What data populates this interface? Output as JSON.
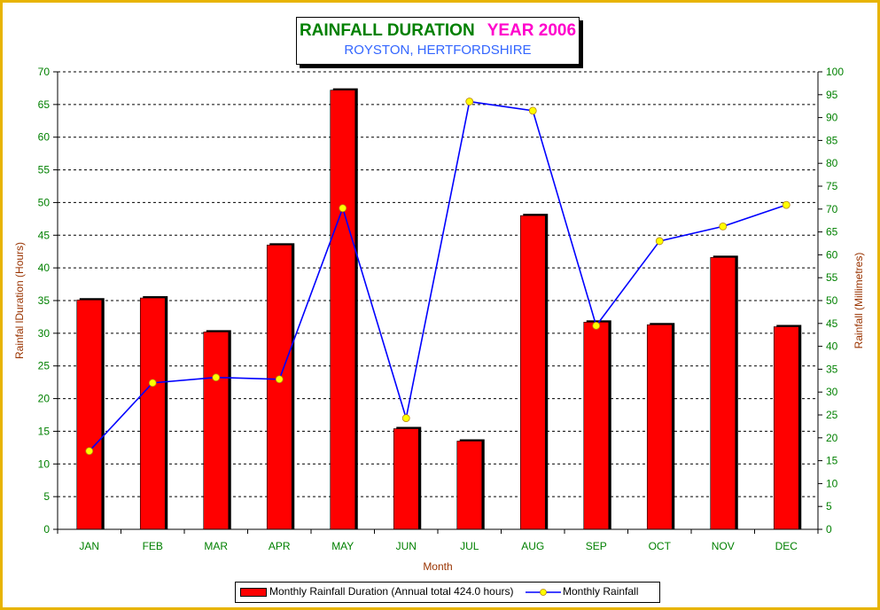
{
  "title": {
    "main": "RAINFALL DURATION",
    "year": "YEAR 2006",
    "subtitle": "ROYSTON, HERTFORDSHIRE"
  },
  "chart_data": {
    "type": "bar",
    "categories": [
      "JAN",
      "FEB",
      "MAR",
      "APR",
      "MAY",
      "JUN",
      "JUL",
      "AUG",
      "SEP",
      "OCT",
      "NOV",
      "DEC"
    ],
    "series": [
      {
        "name": "Monthly Rainfall Duration (Annual total 424.0 hours)",
        "type": "bar",
        "axis": "left",
        "color": "#ff0000",
        "values": [
          35.1,
          35.4,
          30.2,
          43.5,
          67.2,
          15.4,
          13.5,
          48.0,
          31.7,
          31.3,
          41.6,
          31.0
        ]
      },
      {
        "name": "Monthly Rainfall",
        "type": "line",
        "axis": "right",
        "color": "#0000ff",
        "marker_color": "#ffff00",
        "values": [
          17.1,
          32.0,
          33.2,
          32.8,
          70.2,
          24.3,
          93.5,
          91.5,
          44.5,
          63.0,
          66.2,
          70.9
        ]
      }
    ],
    "xlabel": "Month",
    "ylabel_left": "Rainfal lDuration (Hours)",
    "ylabel_right": "Rainfall (Millimetres)",
    "ylim_left": [
      0,
      70
    ],
    "ylim_right": [
      0,
      100
    ],
    "yticks_left": [
      "0",
      "5",
      "10",
      "15",
      "20",
      "25",
      "30",
      "35",
      "40",
      "45",
      "50",
      "55",
      "60",
      "65",
      "70"
    ],
    "yticks_right": [
      "0",
      "5",
      "10",
      "15",
      "20",
      "25",
      "30",
      "35",
      "40",
      "45",
      "50",
      "55",
      "60",
      "65",
      "70",
      "75",
      "80",
      "85",
      "90",
      "95",
      "100"
    ],
    "grid": true,
    "legend_position": "bottom"
  },
  "colors": {
    "frame": "#e8b400",
    "tick_text": "#008000",
    "axis_title": "#993300"
  }
}
